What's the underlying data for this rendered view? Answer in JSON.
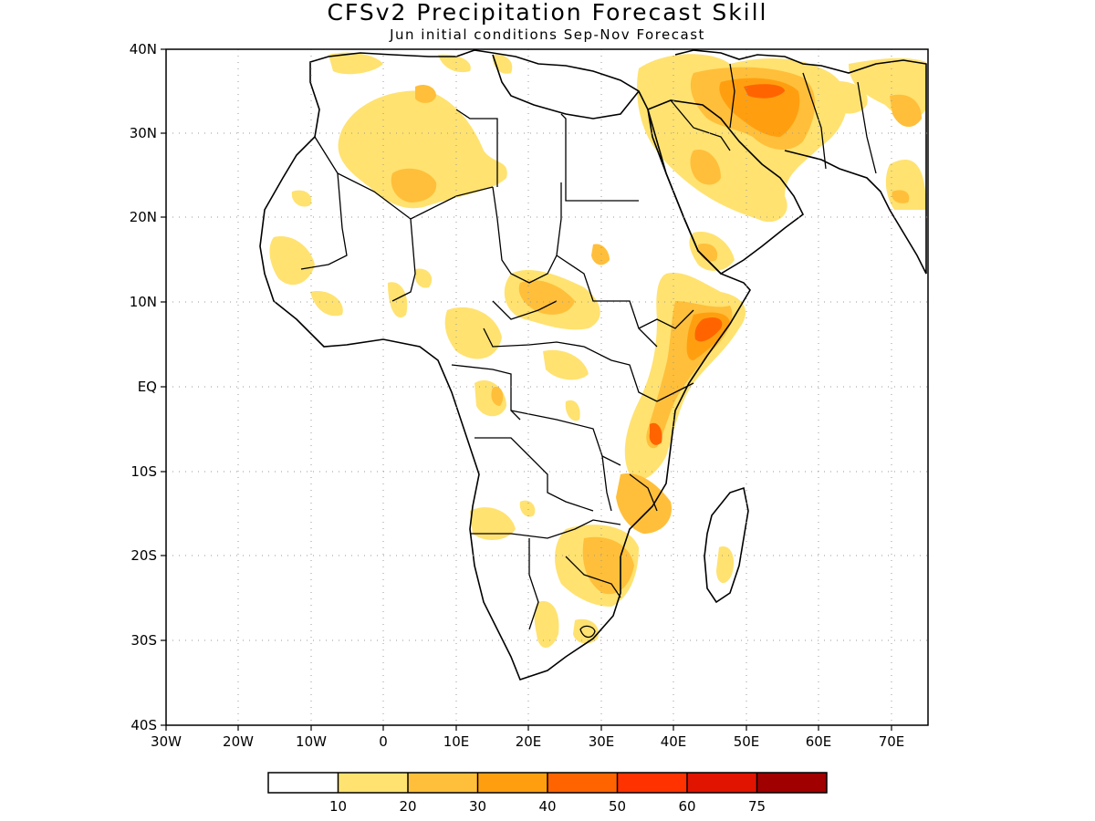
{
  "header": {
    "title": "CFSv2 Precipitation Forecast Skill",
    "subtitle": "Jun initial conditions  Sep-Nov Forecast"
  },
  "map": {
    "lon_range": [
      -30,
      75
    ],
    "lat_range": [
      -40,
      40
    ],
    "lat_labels": [
      "40N",
      "30N",
      "20N",
      "10N",
      "EQ",
      "10S",
      "20S",
      "30S",
      "40S"
    ],
    "lon_labels": [
      "30W",
      "20W",
      "10W",
      "0",
      "10E",
      "20E",
      "30E",
      "40E",
      "50E",
      "60E",
      "70E"
    ],
    "gridlines": "dotted"
  },
  "colorbar": {
    "levels": [
      "10",
      "20",
      "30",
      "40",
      "50",
      "60",
      "75"
    ],
    "colors": [
      "#ffffff",
      "#ffe270",
      "#ffbf3a",
      "#ff9f10",
      "#ff6400",
      "#ff3200",
      "#e01400",
      "#a00000"
    ]
  }
}
